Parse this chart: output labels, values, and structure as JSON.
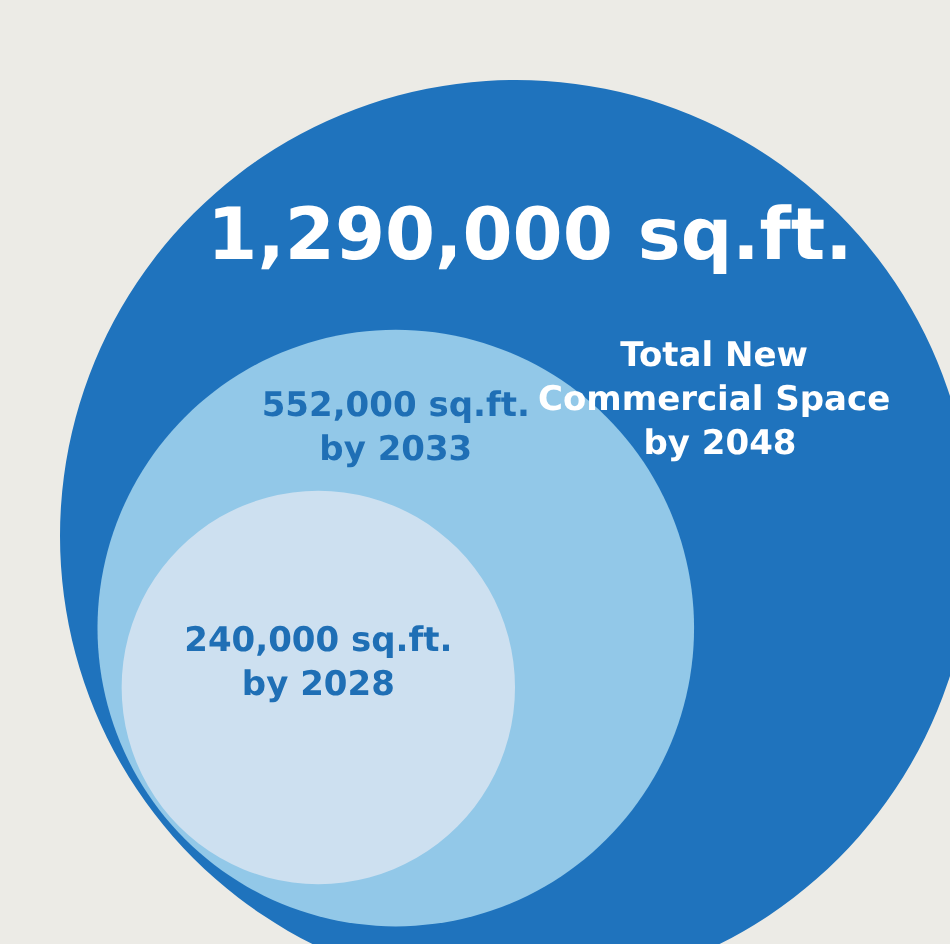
{
  "chart_data": {
    "type": "other",
    "categories": [
      "Total New Commercial Space by 2048",
      "by 2033",
      "by 2028"
    ],
    "values": [
      1290000,
      552000,
      240000
    ],
    "value_labels": [
      "1,290,000 sq.ft.",
      "552,000 sq.ft.",
      "240,000 sq.ft."
    ],
    "colors": [
      "#1f73bd",
      "#92c8e8",
      "#cde0f0"
    ]
  }
}
